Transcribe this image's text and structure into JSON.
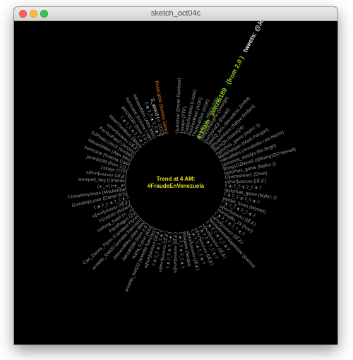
{
  "window": {
    "title": "sketch_oct04c"
  },
  "center": {
    "line1": "Trend at 4 AM:",
    "line2": "#FraudeEnVenezuela"
  },
  "colors": {
    "background": "#000000",
    "text": "#9a9a9a",
    "highlight": "#e6e6e6",
    "green": "#8cd61c",
    "orange": "#f07a1a",
    "yellow": "#e8e01a"
  },
  "tweet": {
    "time": "4:15am",
    "user": "jamz8i189",
    "source": "(from 2.0 )",
    "body": "tweets: @JohnnySix Rocks nothing, I think that's the problem, haa."
  },
  "labels": [
    "Gumshoe (Drunk Rainbow)",
    "1ssaye (TTF)",
    "CuppySockets (Lizzie)",
    "PenFoxBoat (AGR)",
    "TheRealOvo (AGR)",
    "dailyGlow_HEIDI (EE)",
    "ohhbyebyegirla (George)",
    "GumyonaQi (Daniel)",
    "TeleliQ_Bos (Benedicta Zimba)",
    "@hyaambara (Aditya Amilani)",
    "StarsQA (StarsQA)",
    "taylorhas_game (taylor;-))",
    "MarkPangan (Mark Pangan)",
    "mfevaffairs (Annabelle Lee-Harris)",
    "asmanos_sasdya (Mr-Brigh)",
    "Bring1DZHerell (@Bring1DZHerwell)",
    "taylorhas_game (taylor;-))",
    "CinemaNow1 (Drew)",
    "ω[•ω•]ωωωω (ぽよ)",
    "ʕ·ᴥ·ʔ_ʕ·ᴥ·ʔ_ʕ·ᴥ·ʔ",
    "taylorhas_game (taylor;-))",
    "ʕ·ᴥ·ʔ_ʕ·ᴥ·ʔ_ʕ·ᴥ·ʔ",
    "wynter_loves (Wynter)",
    "ʕ·ᴥ·ʔ_ʕ·ᴥ·ʔ_ʕ·ᴥ·ʔ",
    "ω[•ω•]ωωωω (ぽよ)",
    "marshallin_19 (Ivan)",
    "ʕ·ᴥ·ʔ_ʕ·ᴥ·ʔ_ʕ·ᴥ·ʔ",
    "ω[•ω•]ωωωω (ぽよ)",
    "honeydewwithlapenbee (joanna)",
    "ʕ·ᴥ·ʔ_ʕ·ᴥ·ʔ_ʕ·ᴥ·ʔ",
    "ω[•ω•]ωωωω (ぽよ)",
    "ʕ·ᴥ·ʔ_ʕ·ᴥ·ʔ_ʕ·ᴥ·ʔ",
    "ω[•ω•]ωωωω (ぽよ)",
    "ʕ·ᴥ·ʔ_ʕ·ᴥ·ʔ_ʕ·ᴥ·ʔ",
    "ω[•ω•]ωωωω (ぽよ)",
    "Bosques (Sergio)",
    "ʕ·ᴥ·ʔ_ʕ·ᴥ·ʔ_ʕ·ᴥ·ʔ",
    "ω[•ω•]ωωωω (ぽよ)",
    "ʕ·ᴥ·ʔ_ʕ·ᴥ·ʔ_ʕ·ᴥ·ʔ",
    "ω[•ω•]ωωωω (ぽよ)",
    "ʕ·ᴥ·ʔ_ʕ·ᴥ·ʔ_ʕ·ᴥ·ʔ",
    "ω[•ω•]ωωωω (ぽよ)",
    "annette_Kelt20 (annette francisco)",
    "Karla_Fyrne (Kim)",
    "Jamz8i189 (from 2.0 )",
    "AlexandMex (Alex Mex)",
    "annette_Kelt20 (annette francisco)",
    "Can_Dance_Flynn (Candace Flynn)",
    "ParaRagun (Zo)",
    "nothing_toast (n-_-n)",
    "TGVsbiU (Robert)",
    "ω[•ω•]ωωωω (ぽよ)",
    "ʕ·ᴥ·ʔ_ʕ·ᴥ·ʔ_ʕ·ᴥ·ʔ",
    "GumdropLover (Daniel Eris)",
    "Cinnanonymous (Mackenzie)",
    "(◕‿◕) (•◕‿◕•)",
    "stomped_bey (Orlando)",
    "ω[•ω•]ωωωω (ぽよ)",
    "1ssaye (TTF)",
    "jamz8i189 (from 2.0 )",
    "hurricane (Kotrina Cole)",
    "AlexandMex (Alex Mex)",
    "SJPhoto (Jordi Sinnlish)",
    "ForYouFan2 (Jeromy)",
    "ω[•ω•]ωωωω (ぽよ)",
    "WrenTheWren (Wren)",
    "ʕ·ᴥ·ʔ_ʕ·ᴥ·ʔ_ʕ·ᴥ·ʔ",
    "jamz8i189 (from 2.0 )",
    "hurricane (Kotrina Cole)",
    "AlexandMex (Alex Mex)",
    "ʕ·ᴥ·ʔ_ʕ·ᴥ·ʔ_ʕ·ᴥ·ʔ",
    "S_ypoo3 (☆ ゚∀゚)",
    "RosaLiptta (Sandra Santo)"
  ]
}
